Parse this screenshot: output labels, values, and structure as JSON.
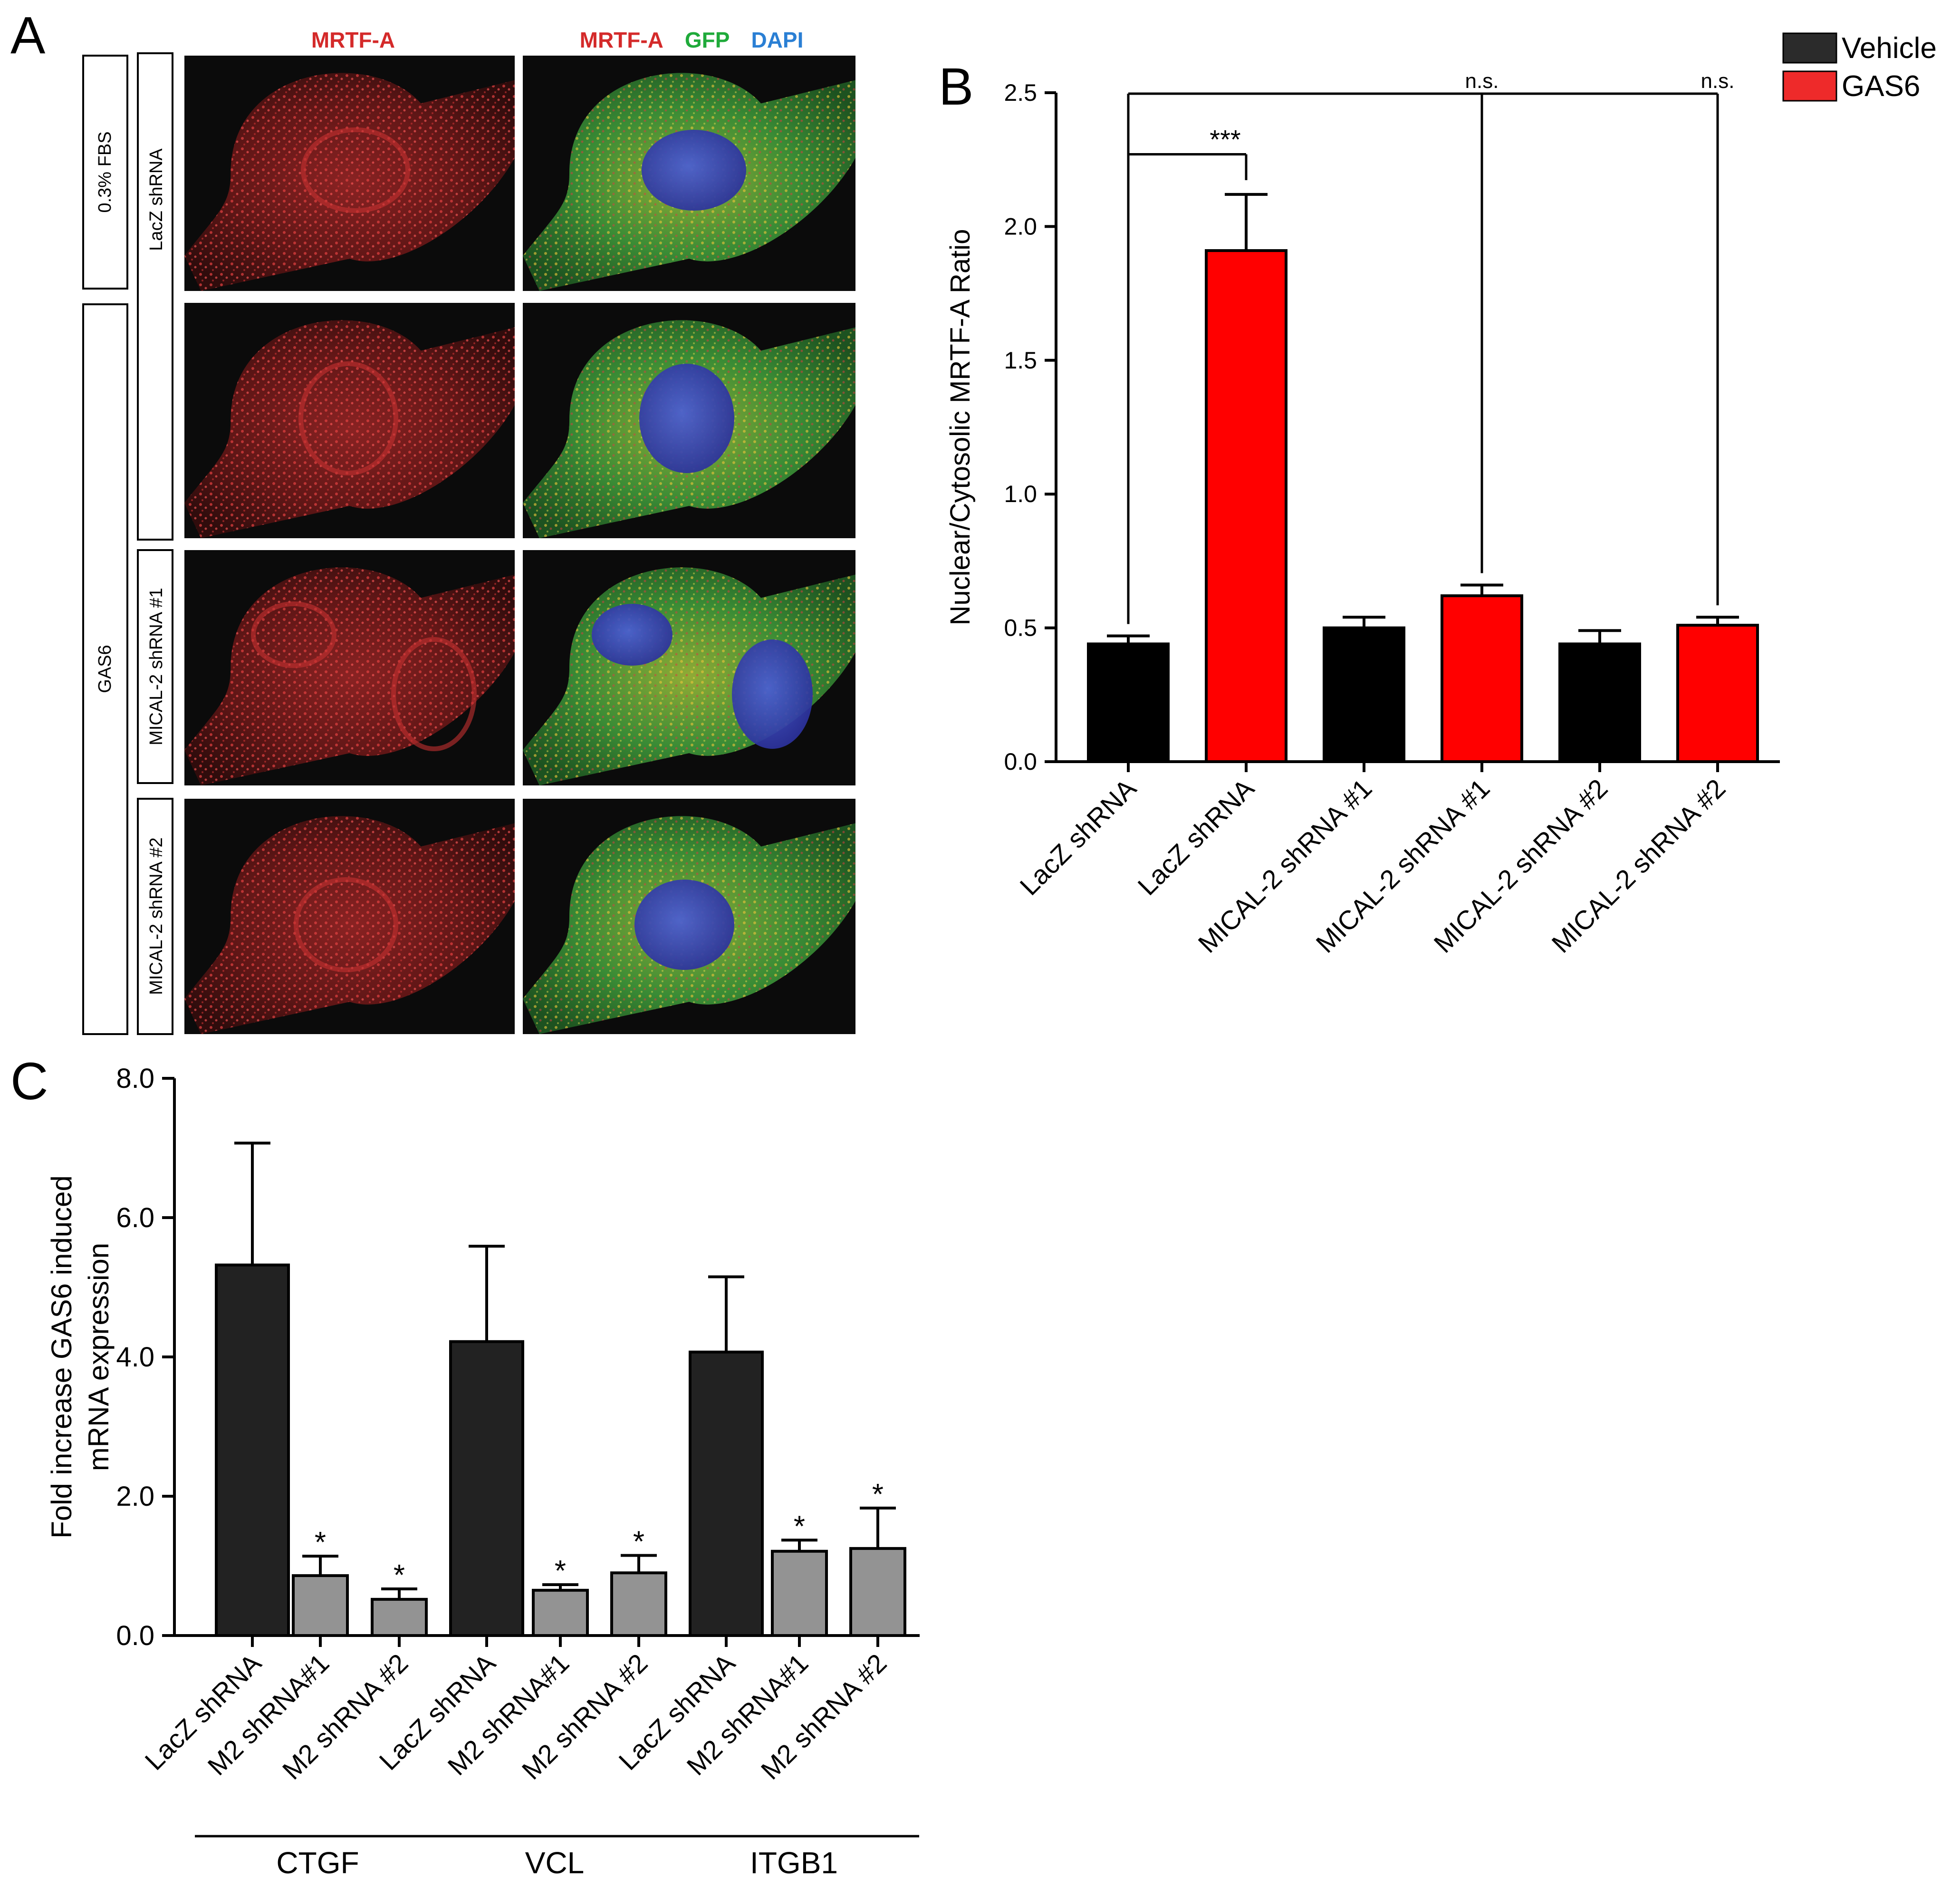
{
  "panels": {
    "A": {
      "letter": "A",
      "column_headers": {
        "left": "MRTF-A",
        "right_parts": [
          {
            "text": "MRTF-A",
            "color": "#d42a2a"
          },
          {
            "text": "GFP",
            "color": "#1faa3a"
          },
          {
            "text": "DAPI",
            "color": "#2a7fd4"
          }
        ]
      },
      "condition_labels": [
        "0.3% FBS",
        "GAS6"
      ],
      "shrna_labels": [
        "LacZ shRNA",
        "MICAL-2 shRNA #1",
        "MICAL-2 shRNA #2"
      ],
      "image_rows": 4
    },
    "B": {
      "letter": "B",
      "significance": {
        "main": "***",
        "ns1": "n.s.",
        "ns2": "n.s."
      }
    },
    "C": {
      "letter": "C",
      "significance_marker": "*"
    }
  },
  "colors": {
    "vehicle": "#000000",
    "gas6": "#ff0000",
    "dark_bar": "#222222",
    "gray_bar": "#939393",
    "red_text": "#d42a2a",
    "green_text": "#1faa3a",
    "blue_text": "#2a7fd4"
  },
  "chart_data": [
    {
      "panel": "B",
      "type": "bar",
      "title": "",
      "ylabel": "Nuclear/Cytosolic MRTF-A Ratio",
      "xlabel": "",
      "ylim": [
        0,
        2.5
      ],
      "yticks": [
        0.0,
        0.5,
        1.0,
        1.5,
        2.0,
        2.5
      ],
      "ytick_labels": [
        "0.0",
        "0.5",
        "1.0",
        "1.5",
        "2.0",
        "2.5"
      ],
      "legend": {
        "placement": "top-right",
        "entries": [
          {
            "name": "Vehicle",
            "color": "#000000"
          },
          {
            "name": "GAS6",
            "color": "#ff0000"
          }
        ]
      },
      "categories": [
        "LacZ shRNA",
        "LacZ shRNA",
        "MICAL-2 shRNA #1",
        "MICAL-2  shRNA #1",
        "MICAL-2 shRNA #2",
        "MICAL-2 shRNA #2"
      ],
      "groups": [
        "Vehicle",
        "GAS6",
        "Vehicle",
        "GAS6",
        "Vehicle",
        "GAS6"
      ],
      "values": [
        0.44,
        1.91,
        0.5,
        0.62,
        0.44,
        0.51
      ],
      "errors": [
        0.03,
        0.21,
        0.04,
        0.04,
        0.05,
        0.03
      ],
      "grid": false
    },
    {
      "panel": "C",
      "type": "bar",
      "title": "",
      "ylabel_lines": [
        "Fold increase GAS6 induced",
        "mRNA expression"
      ],
      "xlabel": "",
      "ylim": [
        0,
        8
      ],
      "yticks": [
        0,
        2,
        4,
        6,
        8
      ],
      "ytick_labels": [
        "0.0",
        "2.0",
        "4.0",
        "6.0",
        "8.0"
      ],
      "categories": [
        "LacZ shRNA",
        "M2 shRNA#1",
        "M2 shRNA #2",
        "LacZ shRNA",
        "M2 shRNA#1",
        "M2 shRNA #2",
        "LacZ shRNA",
        "M2 shRNA#1",
        "M2 shRNA #2"
      ],
      "values": [
        5.32,
        0.86,
        0.52,
        4.22,
        0.65,
        0.9,
        4.07,
        1.21,
        1.25
      ],
      "errors": [
        1.75,
        0.28,
        0.15,
        1.37,
        0.08,
        0.25,
        1.08,
        0.16,
        0.58
      ],
      "bar_colors": [
        "dark",
        "gray",
        "gray",
        "dark",
        "gray",
        "gray",
        "dark",
        "gray",
        "gray"
      ],
      "significant": [
        false,
        true,
        true,
        false,
        true,
        true,
        false,
        true,
        true
      ],
      "gene_groups": [
        {
          "name": "CTGF",
          "start": 0,
          "end": 2
        },
        {
          "name": "VCL",
          "start": 3,
          "end": 5
        },
        {
          "name": "ITGB1",
          "start": 6,
          "end": 8
        }
      ],
      "grid": false
    }
  ]
}
